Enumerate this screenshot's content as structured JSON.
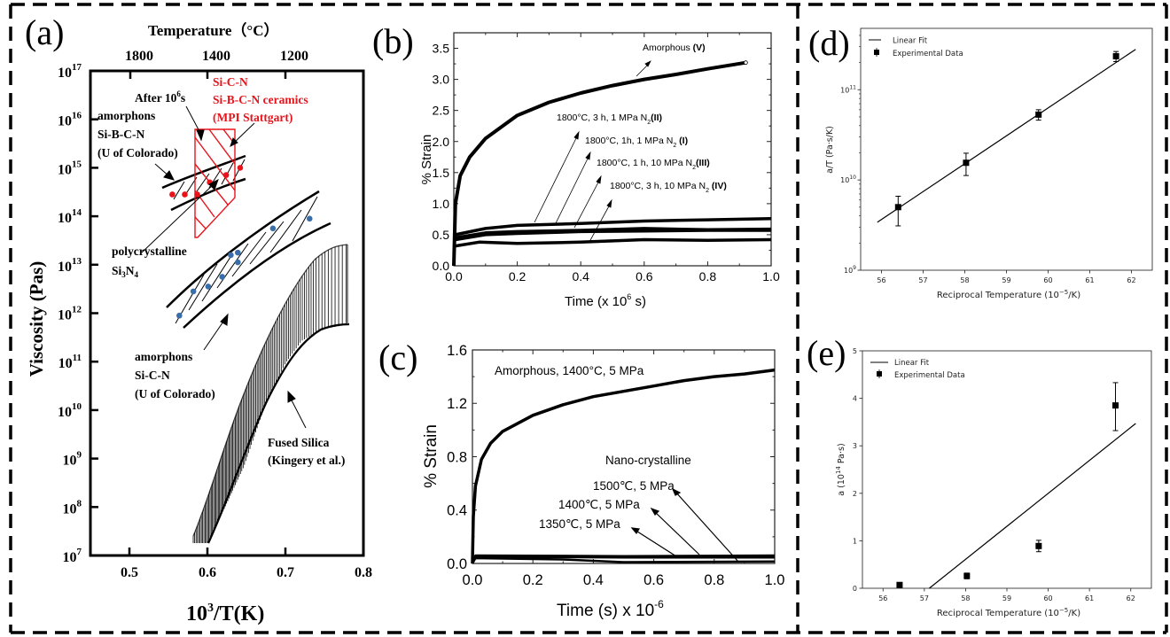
{
  "panel_labels": {
    "a": "(a)",
    "b": "(b)",
    "c": "(c)",
    "d": "(d)",
    "e": "(e)"
  },
  "chart_data": [
    {
      "id": "a",
      "type": "scatter",
      "title": "",
      "xlabel": "10",
      "xlabel_sup": "3",
      "xlabel_tail": "/T(K)",
      "ylabel": "Viscosity  (Pas)",
      "top_axis_label": "Temperature（°C）",
      "top_ticks": [
        {
          "label": "1800",
          "x": 0.524
        },
        {
          "label": "1400",
          "x": 0.573
        },
        {
          "label": "1200",
          "x": 0.65
        }
      ],
      "xlim": [
        0.45,
        0.8
      ],
      "ylim_log10": [
        7,
        17
      ],
      "x_ticks": [
        "0.5",
        "0.6",
        "0.7",
        "0.8"
      ],
      "x_tick_values": [
        0.5,
        0.6,
        0.7,
        0.8
      ],
      "y_ticks": [
        {
          "base": "10",
          "exp": "17",
          "v": 17
        },
        {
          "base": "10",
          "exp": "16",
          "v": 16
        },
        {
          "base": "10",
          "exp": "15",
          "v": 15
        },
        {
          "base": "10",
          "exp": "14",
          "v": 14
        },
        {
          "base": "10",
          "exp": "13",
          "v": 13
        },
        {
          "base": "10",
          "exp": "12",
          "v": 12
        },
        {
          "base": "10",
          "exp": "11",
          "v": 11
        },
        {
          "base": "10",
          "exp": "10",
          "v": 10
        },
        {
          "base": "10",
          "exp": "9",
          "v": 9
        },
        {
          "base": "10",
          "exp": "8",
          "v": 8
        },
        {
          "base": "10",
          "exp": "7",
          "v": 7
        }
      ],
      "red_points": [
        [
          0.555,
          14.45
        ],
        [
          0.571,
          14.45
        ],
        [
          0.587,
          14.45
        ],
        [
          0.603,
          14.7
        ],
        [
          0.624,
          14.85
        ],
        [
          0.642,
          15.0
        ]
      ],
      "blue_points": [
        [
          0.564,
          11.95
        ],
        [
          0.582,
          12.45
        ],
        [
          0.601,
          12.55
        ],
        [
          0.619,
          12.75
        ],
        [
          0.63,
          13.2
        ],
        [
          0.639,
          13.25
        ],
        [
          0.639,
          13.05
        ],
        [
          0.684,
          13.75
        ],
        [
          0.731,
          13.95
        ]
      ],
      "colors": {
        "red": "#e8141c",
        "blue": "#3a6ea8"
      },
      "annotations": {
        "after": "After 10",
        "after_sup": "6",
        "after_tail": "s",
        "sicn_red_1": "Si-C-N",
        "sicn_red_2": "Si-B-C-N ceramics",
        "sicn_red_3": "(MPI Stattgart)",
        "sibcn_1": "amorphons",
        "sibcn_2": "Si-B-C-N",
        "sibcn_3": "(U of Colorado)",
        "poly_1": "polycrystalline",
        "poly_2a": "Si",
        "poly_2b": "3",
        "poly_2c": "N",
        "poly_2d": "4",
        "sicn_1": "amorphons",
        "sicn_2": "Si-C-N",
        "sicn_3": "(U of Colorado)",
        "silica_1": "Fused Silica",
        "silica_2": "(Kingery et al.)"
      }
    },
    {
      "id": "b",
      "type": "line",
      "xlabel": "Time  (x 10",
      "xlabel_sup": "6",
      "xlabel_tail": " s)",
      "ylabel": "% Strain",
      "xlim": [
        0,
        1.0
      ],
      "ylim": [
        0,
        3.75
      ],
      "x_ticks": [
        "0.0",
        "0.2",
        "0.4",
        "0.6",
        "0.8",
        "1.0"
      ],
      "y_ticks": [
        "0.0",
        "0.5",
        "1.0",
        "1.5",
        "2.0",
        "2.5",
        "3.0",
        "3.5"
      ],
      "series": [
        {
          "name": "Amorphous (V)",
          "x": [
            0,
            0.005,
            0.02,
            0.05,
            0.1,
            0.2,
            0.3,
            0.4,
            0.5,
            0.6,
            0.7,
            0.8,
            0.92
          ],
          "y": [
            0,
            1.0,
            1.45,
            1.75,
            2.05,
            2.42,
            2.63,
            2.78,
            2.9,
            3.0,
            3.08,
            3.17,
            3.27
          ]
        },
        {
          "name": "1800°C, 3 h, 1 MPa N2 (II)",
          "x": [
            0.005,
            0.1,
            0.2,
            0.4,
            0.6,
            0.8,
            1.0
          ],
          "y": [
            0.5,
            0.6,
            0.65,
            0.68,
            0.72,
            0.74,
            0.76
          ]
        },
        {
          "name": "1800°C, 1h, 1 MPa N2 (I)",
          "x": [
            0.005,
            0.1,
            0.2,
            0.4,
            0.6,
            0.8,
            1.0
          ],
          "y": [
            0.45,
            0.53,
            0.55,
            0.57,
            0.6,
            0.58,
            0.59
          ]
        },
        {
          "name": "1800°C, 1 h, 10 MPa N2 (III)",
          "x": [
            0.005,
            0.1,
            0.2,
            0.4,
            0.6,
            0.8,
            1.0
          ],
          "y": [
            0.42,
            0.5,
            0.52,
            0.55,
            0.56,
            0.57,
            0.57
          ]
        },
        {
          "name": "1800°C, 3 h, 10 MPa N2 (IV)",
          "x": [
            0.005,
            0.08,
            0.2,
            0.4,
            0.6,
            0.8,
            1.0
          ],
          "y": [
            0.32,
            0.38,
            0.36,
            0.38,
            0.42,
            0.41,
            0.42
          ]
        }
      ],
      "labels": [
        {
          "pre": "Amorphous ",
          "bold": "(V)"
        },
        {
          "pre": "1800°C, 3 h, 1 MPa N",
          "sub": "2",
          "bold": "(II)"
        },
        {
          "pre": "1800°C, 1h, 1 MPa N",
          "sub": "2",
          "bold": " (I)"
        },
        {
          "pre": "1800°C, 1 h, 10 MPa N",
          "sub": "2",
          "bold": "(III)"
        },
        {
          "pre": "1800°C, 3 h, 10 MPa N",
          "sub": "2",
          "bold": " (IV)"
        }
      ]
    },
    {
      "id": "c",
      "type": "line",
      "xlabel": "Time (s) x 10",
      "xlabel_sup": "-6",
      "ylabel": "% Strain",
      "xlim": [
        0,
        1.0
      ],
      "ylim": [
        0,
        1.6
      ],
      "x_ticks": [
        "0.0",
        "0.2",
        "0.4",
        "0.6",
        "0.8",
        "1.0"
      ],
      "y_ticks": [
        "0.0",
        "0.4",
        "0.8",
        "1.2",
        "1.6"
      ],
      "series": [
        {
          "name": "Amorphous, 1400°C, 5 MPa",
          "x": [
            0,
            0.003,
            0.01,
            0.03,
            0.06,
            0.1,
            0.2,
            0.3,
            0.4,
            0.5,
            0.6,
            0.7,
            0.8,
            0.9,
            1.0
          ],
          "y": [
            0,
            0.35,
            0.58,
            0.78,
            0.9,
            0.99,
            1.11,
            1.19,
            1.25,
            1.29,
            1.33,
            1.37,
            1.4,
            1.42,
            1.45
          ]
        },
        {
          "name": "1500℃, 5 MPa",
          "x": [
            0,
            0.01,
            0.5,
            1.0
          ],
          "y": [
            0,
            0.06,
            0.055,
            0.06
          ]
        },
        {
          "name": "1400℃, 5 MPa",
          "x": [
            0,
            0.01,
            0.5,
            1.0
          ],
          "y": [
            0,
            0.05,
            0.045,
            0.045
          ]
        },
        {
          "name": "1350℃, 5 MPa",
          "x": [
            0,
            0.01,
            0.3,
            0.5,
            1.0
          ],
          "y": [
            0,
            0.04,
            0.03,
            0.01,
            0.015
          ]
        }
      ],
      "labels": {
        "amorphous": "Amorphous, 1400°C, 5 MPa",
        "nano": "Nano-crystalline",
        "t1500": "1500℃, 5 MPa",
        "t1400": "1400℃, 5 MPa",
        "t1350": "1350℃, 5 MPa"
      }
    },
    {
      "id": "d",
      "type": "scatter",
      "xlabel": "Reciprocal Temperature (10",
      "xlabel_sup": "−5",
      "xlabel_tail": "/K)",
      "ylabel": "a/T (Pa·s/K)",
      "xlim": [
        55.5,
        62.5
      ],
      "ylim_log10": [
        9,
        11.68
      ],
      "x_ticks": [
        "56",
        "57",
        "58",
        "59",
        "60",
        "61",
        "62"
      ],
      "y_ticks": [
        {
          "base": "10",
          "exp": "9",
          "v": 9
        },
        {
          "base": "10",
          "exp": "10",
          "v": 10
        },
        {
          "base": "10",
          "exp": "11",
          "v": 11
        }
      ],
      "legend": {
        "position": "top-left",
        "entries": [
          "Linear Fit",
          "Experimental Data"
        ]
      },
      "points": [
        {
          "x": 56.4,
          "y": 5000000000.0,
          "ylo": 3100000000.0,
          "yhi": 6600000000.0
        },
        {
          "x": 58.03,
          "y": 15500000000.0,
          "ylo": 11200000000.0,
          "yhi": 19800000000.0
        },
        {
          "x": 59.77,
          "y": 53000000000.0,
          "ylo": 46000000000.0,
          "yhi": 60000000000.0
        },
        {
          "x": 61.63,
          "y": 235000000000.0,
          "ylo": 205000000000.0,
          "yhi": 265000000000.0
        }
      ],
      "fit": {
        "x": [
          55.9,
          62.1
        ],
        "y": [
          3400000000.0,
          280000000000.0
        ]
      }
    },
    {
      "id": "e",
      "type": "scatter",
      "xlabel": "Reciprocal Temperature (10",
      "xlabel_sup": "−5",
      "xlabel_tail": "/K)",
      "ylabel": "a (10",
      "ylabel_sup": "14",
      "ylabel_tail": " Pa·s)",
      "xlim": [
        55.5,
        62.5
      ],
      "ylim": [
        0,
        5
      ],
      "x_ticks": [
        "56",
        "57",
        "58",
        "59",
        "60",
        "61",
        "62"
      ],
      "y_ticks": [
        "0",
        "1",
        "2",
        "3",
        "4",
        "5"
      ],
      "legend": {
        "position": "top-left",
        "entries": [
          "Linear Fit",
          "Experimental Data"
        ]
      },
      "points": [
        {
          "x": 56.4,
          "y": 0.07,
          "ylo": 0.03,
          "yhi": 0.11
        },
        {
          "x": 58.03,
          "y": 0.26,
          "ylo": 0.2,
          "yhi": 0.32
        },
        {
          "x": 59.77,
          "y": 0.89,
          "ylo": 0.77,
          "yhi": 1.01
        },
        {
          "x": 61.63,
          "y": 3.85,
          "ylo": 3.32,
          "yhi": 4.33
        }
      ],
      "fit": {
        "x": [
          57.12,
          62.12
        ],
        "y": [
          0,
          3.47
        ]
      }
    }
  ]
}
